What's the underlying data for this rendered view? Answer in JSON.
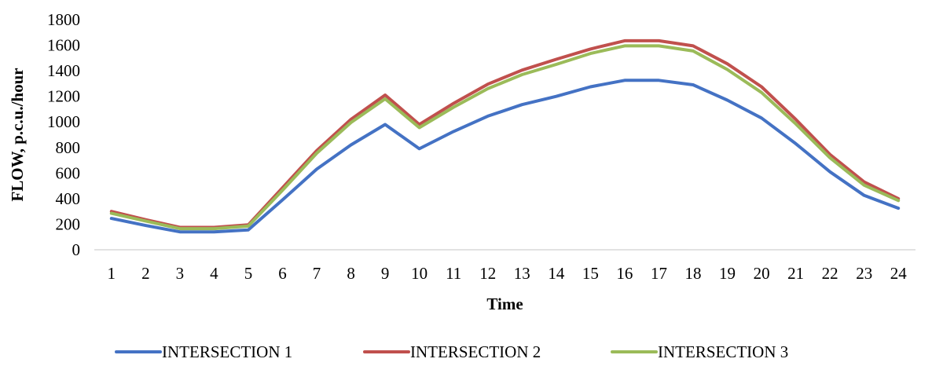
{
  "chart_data": {
    "type": "line",
    "title": "",
    "xlabel": "Time",
    "ylabel": "FLOW, p.c.u./hour",
    "ylim": [
      0,
      1800
    ],
    "yticks": [
      "0",
      "200",
      "400",
      "600",
      "800",
      "1000",
      "1200",
      "1400",
      "1600",
      "1800"
    ],
    "x": [
      "1",
      "2",
      "3",
      "4",
      "5",
      "6",
      "7",
      "8",
      "9",
      "10",
      "11",
      "12",
      "13",
      "14",
      "15",
      "16",
      "17",
      "18",
      "19",
      "20",
      "21",
      "22",
      "23",
      "24"
    ],
    "grid": false,
    "legend_position": "bottom",
    "series": [
      {
        "name": "INTERSECTION 1",
        "color": "#4472C4",
        "values": [
          245,
          190,
          140,
          140,
          155,
          390,
          630,
          820,
          980,
          790,
          925,
          1045,
          1135,
          1200,
          1275,
          1325,
          1325,
          1290,
          1170,
          1030,
          830,
          610,
          425,
          325
        ]
      },
      {
        "name": "INTERSECTION 2",
        "color": "#C0504D",
        "values": [
          300,
          235,
          175,
          175,
          195,
          485,
          775,
          1020,
          1210,
          980,
          1145,
          1295,
          1405,
          1490,
          1570,
          1635,
          1635,
          1595,
          1455,
          1275,
          1020,
          745,
          530,
          400
        ]
      },
      {
        "name": "INTERSECTION 3",
        "color": "#9BBB59",
        "values": [
          285,
          225,
          165,
          165,
          185,
          465,
          755,
          995,
          1180,
          955,
          1115,
          1260,
          1370,
          1450,
          1535,
          1595,
          1595,
          1555,
          1410,
          1230,
          985,
          720,
          505,
          385
        ]
      }
    ]
  }
}
